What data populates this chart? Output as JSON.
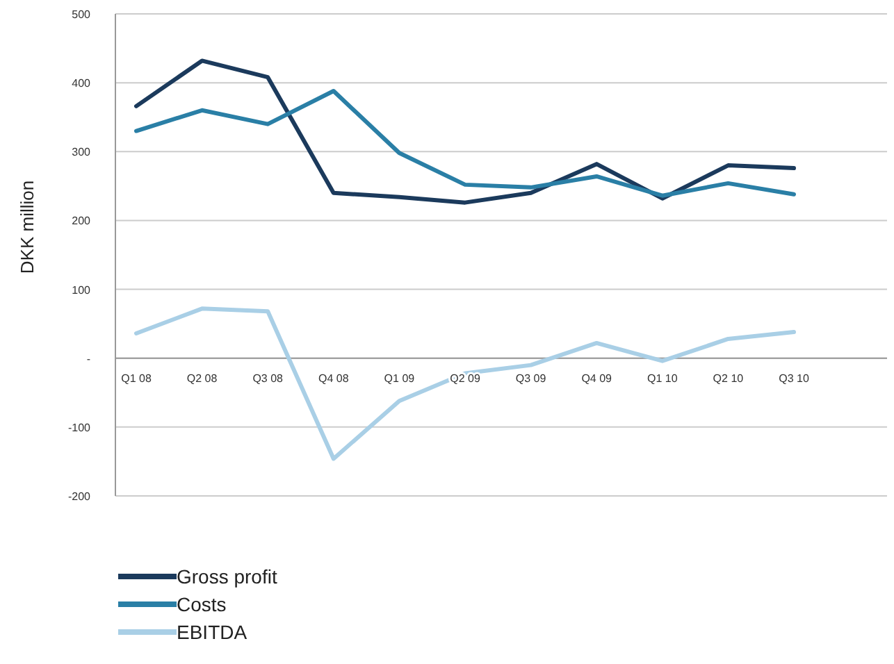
{
  "chart_data": {
    "type": "line",
    "ylabel": "DKK million",
    "categories": [
      "Q1 08",
      "Q2 08",
      "Q3 08",
      "Q4 08",
      "Q1 09",
      "Q2 09",
      "Q3 09",
      "Q4 09",
      "Q1 10",
      "Q2 10",
      "Q3 10"
    ],
    "series": [
      {
        "name": "Gross profit",
        "color": "#1b3a5c",
        "values": [
          366,
          432,
          408,
          240,
          234,
          226,
          240,
          282,
          232,
          280,
          276
        ]
      },
      {
        "name": "Costs",
        "color": "#2a7fa6",
        "values": [
          330,
          360,
          340,
          388,
          298,
          252,
          248,
          264,
          236,
          254,
          238
        ]
      },
      {
        "name": "EBITDA",
        "color": "#a9cfe6",
        "values": [
          36,
          72,
          68,
          -146,
          -62,
          -22,
          -10,
          22,
          -4,
          28,
          38
        ]
      }
    ],
    "ylim": [
      -200,
      500
    ],
    "yticks": [
      -200,
      -100,
      {
        "value": 0,
        "label": "-"
      },
      100,
      200,
      300,
      400,
      500
    ],
    "grid": "y",
    "legend": "bottom",
    "marker": "none",
    "line_style": "solid"
  }
}
